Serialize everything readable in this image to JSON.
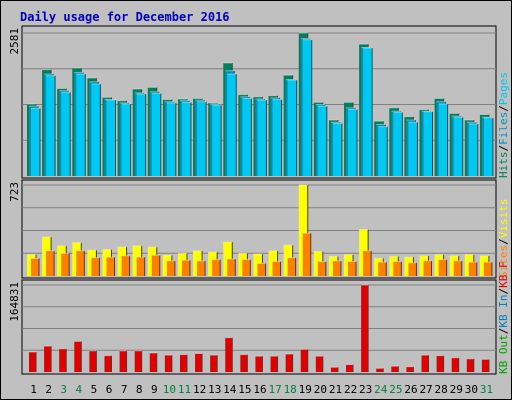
{
  "title": "Daily usage for December 2016",
  "colors": {
    "pages": "#00c8f0",
    "files": "#0090c0",
    "hits": "#00805c",
    "visits": "#ffff00",
    "sites": "#ff8000",
    "kb_in": "#0080c0",
    "kb_out": "#00a000",
    "kb_f": "#e00000",
    "title": "#0000c0",
    "weekend_label": "#008040"
  },
  "chart_data": [
    {
      "type": "bar",
      "ylabel_max": "2581",
      "legend": [
        {
          "text": "Pages",
          "color": "#00c8f0"
        },
        {
          "text": "Files",
          "color": "#0090c0"
        },
        {
          "text": "Hits",
          "color": "#00805c"
        }
      ],
      "categories": [
        "1",
        "2",
        "3",
        "4",
        "5",
        "6",
        "7",
        "8",
        "9",
        "10",
        "11",
        "12",
        "13",
        "14",
        "15",
        "16",
        "17",
        "18",
        "19",
        "20",
        "21",
        "22",
        "23",
        "24",
        "25",
        "26",
        "27",
        "28",
        "29",
        "30",
        "31"
      ],
      "weekend": [
        3,
        4,
        10,
        11,
        17,
        18,
        24,
        25,
        31
      ],
      "ylim": [
        0,
        2581
      ],
      "series": [
        {
          "name": "Hits",
          "values": [
            1300,
            1920,
            1580,
            1950,
            1770,
            1420,
            1360,
            1570,
            1600,
            1380,
            1390,
            1400,
            1320,
            2040,
            1470,
            1430,
            1450,
            1820,
            2581,
            1330,
            1010,
            1330,
            2380,
            990,
            1230,
            1070,
            1200,
            1400,
            1130,
            1010,
            1110
          ]
        },
        {
          "name": "Files",
          "values": [
            1260,
            1840,
            1540,
            1870,
            1700,
            1380,
            1320,
            1500,
            1520,
            1340,
            1360,
            1370,
            1300,
            1900,
            1430,
            1390,
            1410,
            1740,
            2480,
            1290,
            970,
            1230,
            2320,
            930,
            1170,
            1010,
            1170,
            1340,
            1080,
            970,
            1060
          ]
        },
        {
          "name": "Pages",
          "values": [
            1220,
            1810,
            1510,
            1840,
            1660,
            1370,
            1300,
            1480,
            1490,
            1320,
            1330,
            1340,
            1280,
            1840,
            1400,
            1370,
            1380,
            1730,
            2460,
            1260,
            950,
            1200,
            2310,
            890,
            1150,
            970,
            1160,
            1300,
            1060,
            940,
            1050
          ]
        }
      ]
    },
    {
      "type": "bar",
      "ylabel_max": "723",
      "legend": [
        {
          "text": "Visits",
          "color": "#ffff00"
        },
        {
          "text": "Sites",
          "color": "#ff8000"
        }
      ],
      "ylim": [
        0,
        723
      ],
      "series": [
        {
          "name": "Visits",
          "values": [
            170,
            310,
            240,
            265,
            205,
            210,
            230,
            240,
            230,
            165,
            180,
            200,
            190,
            270,
            180,
            175,
            200,
            245,
            723,
            195,
            155,
            170,
            370,
            140,
            155,
            150,
            160,
            170,
            160,
            170,
            160
          ]
        },
        {
          "name": "Sites",
          "values": [
            140,
            200,
            180,
            200,
            145,
            150,
            160,
            150,
            165,
            120,
            125,
            120,
            130,
            135,
            130,
            100,
            115,
            145,
            340,
            115,
            120,
            115,
            200,
            110,
            115,
            105,
            120,
            130,
            120,
            110,
            110
          ]
        }
      ]
    },
    {
      "type": "bar",
      "ylabel_max": "164831",
      "legend": [
        {
          "text": "KB F",
          "color": "#e00000"
        },
        {
          "text": "KB In",
          "color": "#0080c0"
        },
        {
          "text": "KB Out",
          "color": "#00a000"
        }
      ],
      "ylim": [
        0,
        164831
      ],
      "series": [
        {
          "name": "KB F",
          "values": [
            38000,
            49000,
            44000,
            58000,
            40000,
            31000,
            40000,
            40000,
            36000,
            32000,
            33000,
            35000,
            32000,
            65000,
            33000,
            30000,
            30000,
            34000,
            43000,
            30000,
            9000,
            14000,
            164831,
            7000,
            11000,
            10000,
            32000,
            31000,
            27000,
            25000,
            24000
          ]
        }
      ]
    }
  ]
}
